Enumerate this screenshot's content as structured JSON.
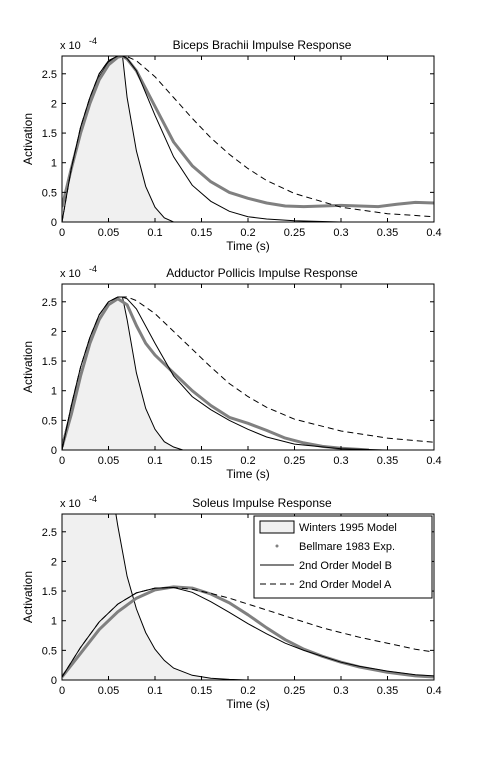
{
  "chart_data": [
    {
      "type": "line",
      "title": "Biceps Brachii Impulse Response",
      "xlabel": "Time (s)",
      "ylabel": "Activation",
      "y_exponent": "x 10",
      "y_exponent_power": "-4",
      "xlim": [
        0,
        0.4
      ],
      "ylim": [
        0,
        2.8
      ],
      "xticks": [
        "0",
        "0.05",
        "0.1",
        "0.15",
        "0.2",
        "0.25",
        "0.3",
        "0.35",
        "0.4"
      ],
      "xtick_values": [
        0,
        0.05,
        0.1,
        0.15,
        0.2,
        0.25,
        0.3,
        0.35,
        0.4
      ],
      "yticks": [
        "0",
        "0.5",
        "1",
        "1.5",
        "2",
        "2.5"
      ],
      "ytick_values": [
        0,
        0.5,
        1,
        1.5,
        2,
        2.5
      ],
      "series": [
        {
          "key": "winters",
          "x": [
            0,
            0.01,
            0.02,
            0.03,
            0.04,
            0.05,
            0.06,
            0.065,
            0.07,
            0.08,
            0.09,
            0.1,
            0.11,
            0.12
          ],
          "y": [
            0.3,
            0.95,
            1.55,
            2.05,
            2.45,
            2.7,
            2.8,
            2.8,
            2.1,
            1.2,
            0.6,
            0.25,
            0.07,
            0
          ]
        },
        {
          "key": "bellmare",
          "x": [
            0,
            0.01,
            0.02,
            0.03,
            0.04,
            0.05,
            0.06,
            0.065,
            0.07,
            0.08,
            0.1,
            0.12,
            0.14,
            0.16,
            0.18,
            0.2,
            0.22,
            0.24,
            0.26,
            0.28,
            0.3,
            0.32,
            0.34,
            0.36,
            0.38,
            0.4
          ],
          "y": [
            0.25,
            0.9,
            1.5,
            2.0,
            2.4,
            2.65,
            2.78,
            2.8,
            2.75,
            2.55,
            1.95,
            1.35,
            0.95,
            0.68,
            0.5,
            0.4,
            0.32,
            0.27,
            0.26,
            0.27,
            0.28,
            0.27,
            0.26,
            0.3,
            0.33,
            0.32
          ]
        },
        {
          "key": "model_b",
          "x": [
            0,
            0.01,
            0.02,
            0.03,
            0.04,
            0.05,
            0.06,
            0.065,
            0.07,
            0.08,
            0.1,
            0.12,
            0.14,
            0.16,
            0.18,
            0.2,
            0.22,
            0.25,
            0.3,
            0.35,
            0.4
          ],
          "y": [
            0,
            0.9,
            1.6,
            2.1,
            2.5,
            2.72,
            2.8,
            2.8,
            2.76,
            2.55,
            1.8,
            1.1,
            0.62,
            0.35,
            0.18,
            0.09,
            0.05,
            0.02,
            0,
            0,
            0
          ]
        },
        {
          "key": "model_a",
          "x": [
            0,
            0.01,
            0.02,
            0.03,
            0.04,
            0.05,
            0.06,
            0.065,
            0.07,
            0.08,
            0.1,
            0.12,
            0.14,
            0.16,
            0.18,
            0.2,
            0.22,
            0.25,
            0.3,
            0.35,
            0.4
          ],
          "y": [
            0,
            0.9,
            1.6,
            2.1,
            2.5,
            2.72,
            2.8,
            2.8,
            2.79,
            2.72,
            2.45,
            2.1,
            1.75,
            1.42,
            1.14,
            0.9,
            0.7,
            0.48,
            0.25,
            0.14,
            0.09
          ]
        }
      ]
    },
    {
      "type": "line",
      "title": "Adductor Pollicis Impulse Response",
      "xlabel": "Time (s)",
      "ylabel": "Activation",
      "y_exponent": "x 10",
      "y_exponent_power": "-4",
      "xlim": [
        0,
        0.4
      ],
      "ylim": [
        0,
        2.8
      ],
      "xticks": [
        "0",
        "0.05",
        "0.1",
        "0.15",
        "0.2",
        "0.25",
        "0.3",
        "0.35",
        "0.4"
      ],
      "xtick_values": [
        0,
        0.05,
        0.1,
        0.15,
        0.2,
        0.25,
        0.3,
        0.35,
        0.4
      ],
      "yticks": [
        "0",
        "0.5",
        "1",
        "1.5",
        "2",
        "2.5"
      ],
      "ytick_values": [
        0,
        0.5,
        1,
        1.5,
        2,
        2.5
      ],
      "series": [
        {
          "key": "winters",
          "x": [
            0,
            0.01,
            0.02,
            0.03,
            0.04,
            0.05,
            0.06,
            0.065,
            0.07,
            0.08,
            0.09,
            0.1,
            0.11,
            0.12,
            0.13
          ],
          "y": [
            0.1,
            0.7,
            1.3,
            1.8,
            2.2,
            2.45,
            2.58,
            2.58,
            2.2,
            1.3,
            0.7,
            0.35,
            0.14,
            0.05,
            0
          ]
        },
        {
          "key": "bellmare",
          "x": [
            0,
            0.01,
            0.02,
            0.03,
            0.04,
            0.05,
            0.06,
            0.07,
            0.08,
            0.09,
            0.1,
            0.12,
            0.14,
            0.16,
            0.18,
            0.2,
            0.22,
            0.24,
            0.26,
            0.28,
            0.3,
            0.33
          ],
          "y": [
            0.05,
            0.6,
            1.25,
            1.8,
            2.2,
            2.45,
            2.55,
            2.45,
            2.1,
            1.8,
            1.6,
            1.3,
            1.0,
            0.75,
            0.55,
            0.45,
            0.33,
            0.2,
            0.12,
            0.06,
            0.03,
            0
          ]
        },
        {
          "key": "model_b",
          "x": [
            0,
            0.01,
            0.02,
            0.03,
            0.04,
            0.05,
            0.06,
            0.065,
            0.07,
            0.08,
            0.1,
            0.12,
            0.14,
            0.16,
            0.18,
            0.2,
            0.22,
            0.25,
            0.3,
            0.35,
            0.4
          ],
          "y": [
            0,
            0.75,
            1.4,
            1.9,
            2.28,
            2.5,
            2.58,
            2.58,
            2.55,
            2.38,
            1.8,
            1.25,
            0.9,
            0.68,
            0.5,
            0.35,
            0.22,
            0.1,
            0.02,
            0,
            0
          ]
        },
        {
          "key": "model_a",
          "x": [
            0,
            0.01,
            0.02,
            0.03,
            0.04,
            0.05,
            0.06,
            0.065,
            0.07,
            0.08,
            0.1,
            0.12,
            0.14,
            0.16,
            0.18,
            0.2,
            0.22,
            0.25,
            0.3,
            0.35,
            0.4
          ],
          "y": [
            0,
            0.75,
            1.4,
            1.9,
            2.28,
            2.5,
            2.58,
            2.58,
            2.58,
            2.52,
            2.3,
            2.0,
            1.7,
            1.4,
            1.12,
            0.9,
            0.72,
            0.52,
            0.32,
            0.2,
            0.13
          ]
        }
      ]
    },
    {
      "type": "line",
      "title": "Soleus Impulse Response",
      "xlabel": "Time (s)",
      "ylabel": "Activation",
      "y_exponent": "x 10",
      "y_exponent_power": "-4",
      "xlim": [
        0,
        0.4
      ],
      "ylim": [
        0,
        2.8
      ],
      "xticks": [
        "0",
        "0.05",
        "0.1",
        "0.15",
        "0.2",
        "0.25",
        "0.3",
        "0.35",
        "0.4"
      ],
      "xtick_values": [
        0,
        0.05,
        0.1,
        0.15,
        0.2,
        0.25,
        0.3,
        0.35,
        0.4
      ],
      "yticks": [
        "0",
        "0.5",
        "1",
        "1.5",
        "2",
        "2.5"
      ],
      "ytick_values": [
        0,
        0.5,
        1,
        1.5,
        2,
        2.5
      ],
      "series": [
        {
          "key": "winters",
          "x": [
            0,
            0.058,
            0.06,
            0.07,
            0.08,
            0.09,
            0.1,
            0.11,
            0.12,
            0.14,
            0.16,
            0.18,
            0.2,
            0.25,
            0.3
          ],
          "y": [
            2.8,
            2.8,
            2.6,
            1.75,
            1.2,
            0.8,
            0.52,
            0.33,
            0.2,
            0.08,
            0.03,
            0.01,
            0,
            0,
            0
          ]
        },
        {
          "key": "bellmare",
          "x": [
            0,
            0.02,
            0.04,
            0.06,
            0.08,
            0.1,
            0.12,
            0.14,
            0.16,
            0.18,
            0.2,
            0.22,
            0.24,
            0.26,
            0.28,
            0.3,
            0.32,
            0.35,
            0.38,
            0.4
          ],
          "y": [
            0.05,
            0.45,
            0.85,
            1.15,
            1.38,
            1.52,
            1.57,
            1.55,
            1.45,
            1.3,
            1.1,
            0.88,
            0.68,
            0.52,
            0.4,
            0.3,
            0.22,
            0.13,
            0.07,
            0.05
          ]
        },
        {
          "key": "model_b",
          "x": [
            0,
            0.02,
            0.04,
            0.06,
            0.08,
            0.1,
            0.12,
            0.14,
            0.16,
            0.18,
            0.2,
            0.22,
            0.24,
            0.26,
            0.28,
            0.3,
            0.32,
            0.35,
            0.38,
            0.4
          ],
          "y": [
            0.05,
            0.55,
            0.98,
            1.28,
            1.47,
            1.55,
            1.56,
            1.48,
            1.32,
            1.14,
            0.95,
            0.78,
            0.62,
            0.5,
            0.4,
            0.3,
            0.23,
            0.15,
            0.09,
            0.07
          ]
        },
        {
          "key": "model_a",
          "x": [
            0,
            0.02,
            0.04,
            0.06,
            0.08,
            0.1,
            0.12,
            0.14,
            0.16,
            0.18,
            0.2,
            0.22,
            0.24,
            0.26,
            0.28,
            0.3,
            0.32,
            0.35,
            0.38,
            0.4
          ],
          "y": [
            0.05,
            0.55,
            0.98,
            1.28,
            1.47,
            1.55,
            1.56,
            1.53,
            1.46,
            1.38,
            1.28,
            1.18,
            1.08,
            0.98,
            0.88,
            0.8,
            0.72,
            0.62,
            0.52,
            0.47
          ]
        }
      ]
    }
  ],
  "legend": {
    "placement": "top-right",
    "items": [
      {
        "key": "winters",
        "label": "Winters 1995 Model"
      },
      {
        "key": "bellmare",
        "label": "Bellmare 1983 Exp."
      },
      {
        "key": "model_b",
        "label": "2nd Order Model B"
      },
      {
        "key": "model_a",
        "label": "2nd Order Model A"
      }
    ]
  },
  "colors": {
    "winters_fill": "#f0f0f0",
    "bellmare": "#808080",
    "line": "#000000"
  }
}
